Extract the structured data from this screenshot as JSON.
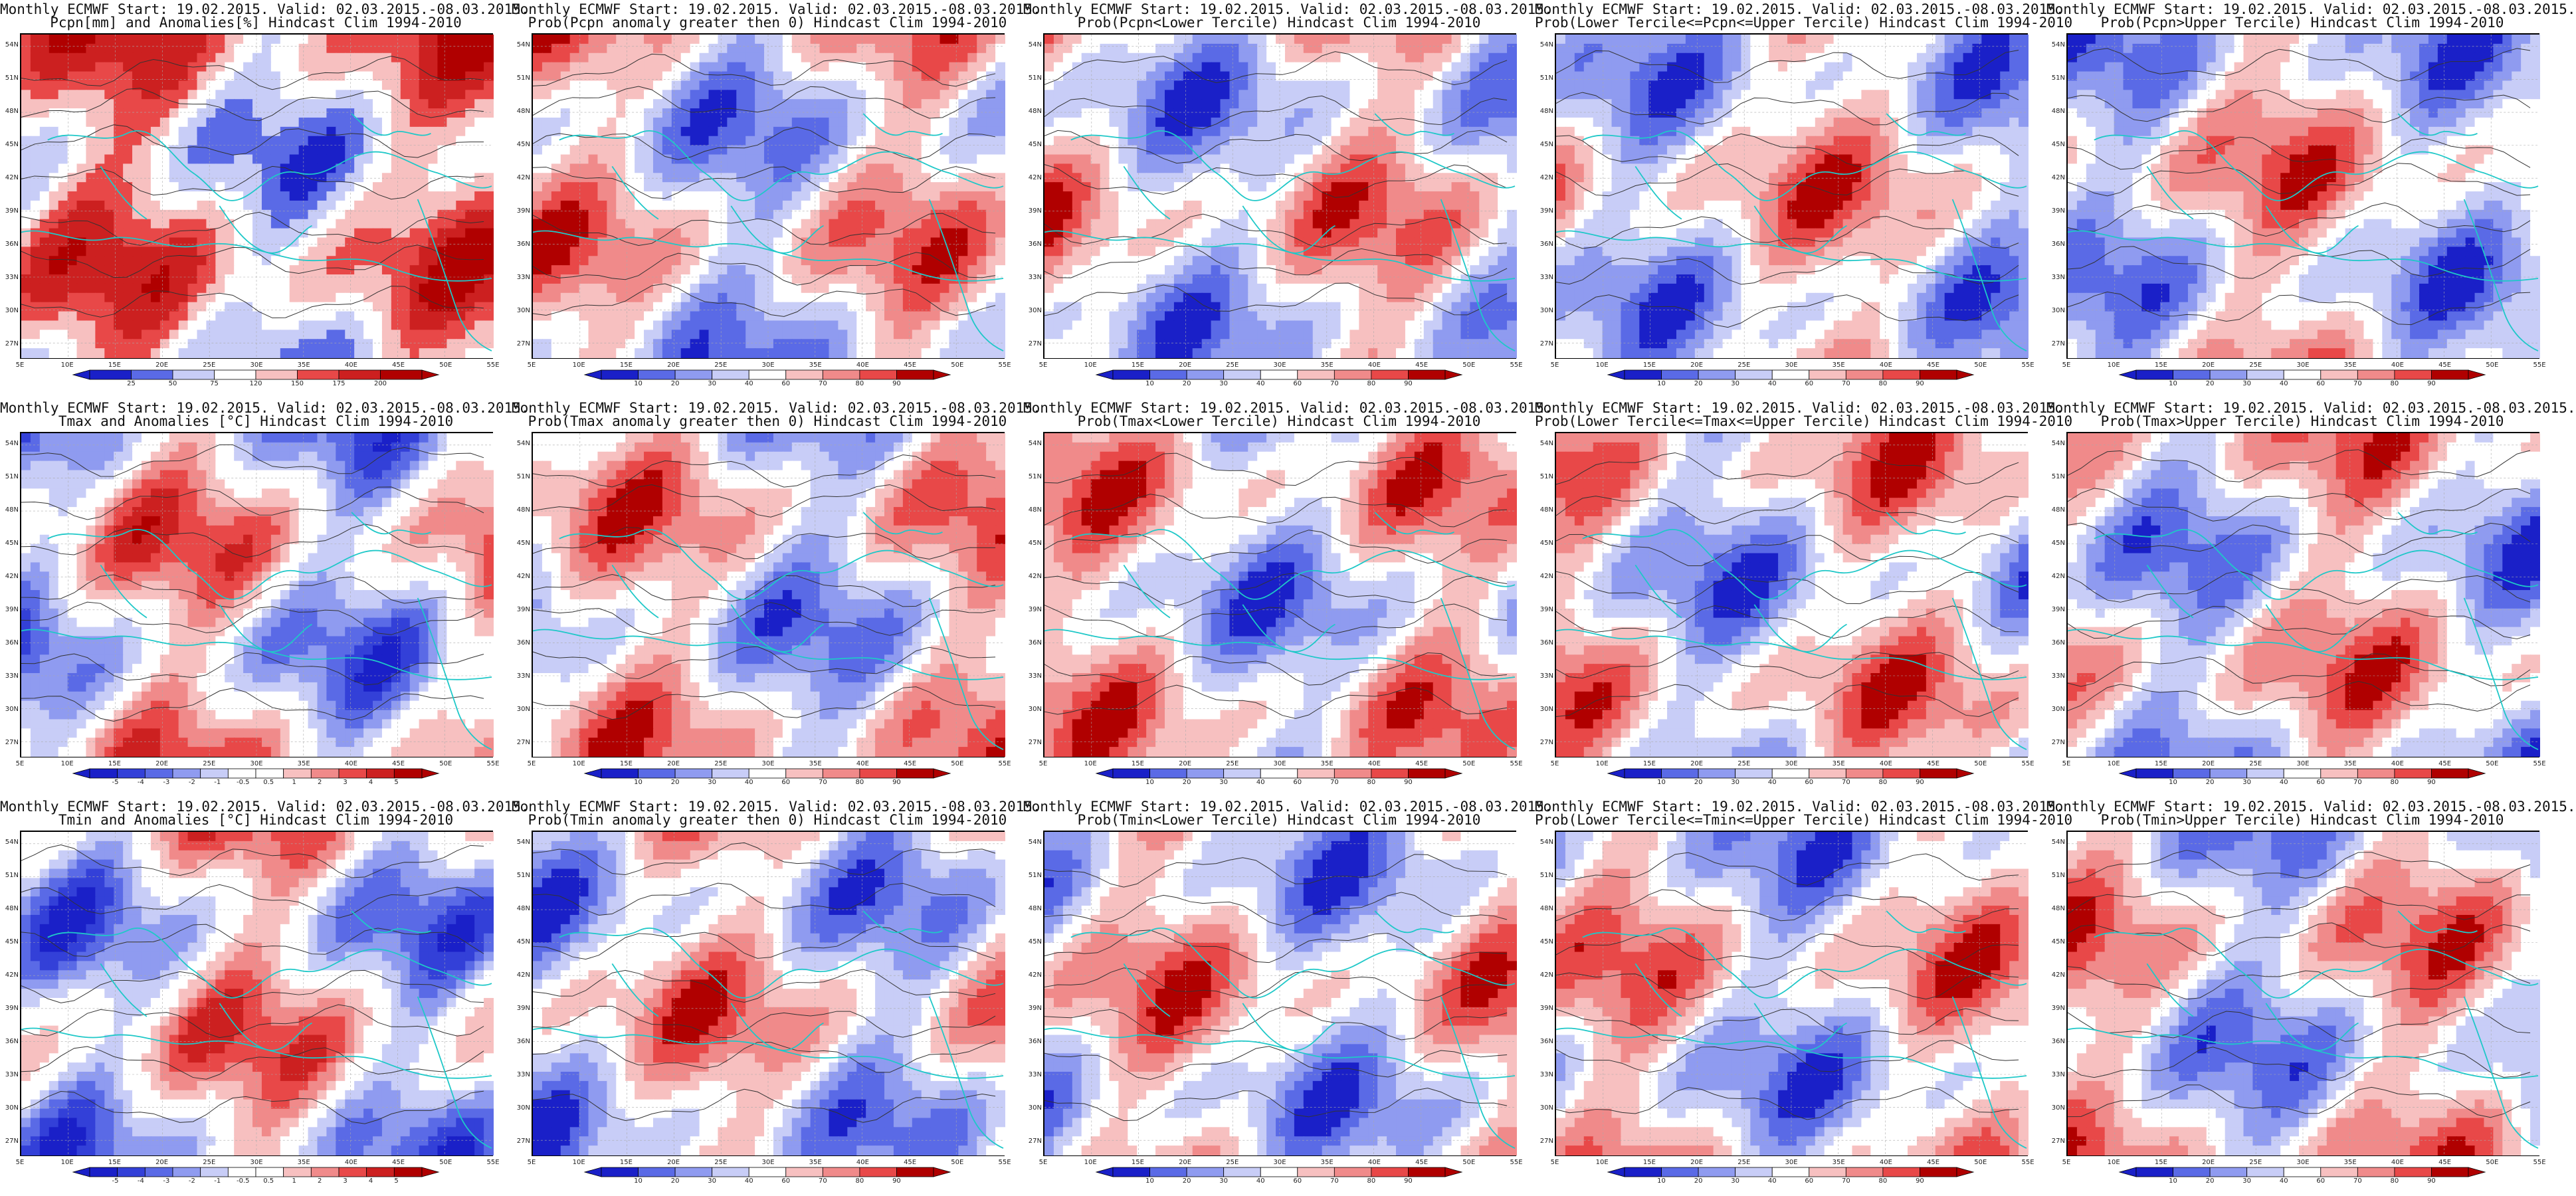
{
  "panels": [
    {
      "title1": "Monthly ECMWF Start: 19.02.2015. Valid: 02.03.2015.-08.03.2015.",
      "title2": "Pcpn[mm] and Anomalies[%] Hindcast Clim 1994-2010",
      "colorbar": [
        "25",
        "50",
        "75",
        "120",
        "150",
        "175",
        "200"
      ],
      "scale": "anom"
    },
    {
      "title1": "Monthly ECMWF Start: 19.02.2015. Valid: 02.03.2015.-08.03.2015.",
      "title2": "Prob(Pcpn anomaly greater then 0) Hindcast Clim 1994-2010",
      "colorbar": [
        "10",
        "20",
        "30",
        "40",
        "60",
        "70",
        "80",
        "90"
      ],
      "scale": "prob"
    },
    {
      "title1": "Monthly ECMWF Start: 19.02.2015. Valid: 02.03.2015.-08.03.2015.",
      "title2": "Prob(Pcpn<Lower Tercile) Hindcast Clim 1994-2010",
      "colorbar": [
        "10",
        "20",
        "30",
        "40",
        "60",
        "70",
        "80",
        "90"
      ],
      "scale": "prob"
    },
    {
      "title1": "Monthly ECMWF Start: 19.02.2015. Valid: 02.03.2015.-08.03.2015.",
      "title2": "Prob(Lower Tercile<=Pcpn<=Upper Tercile) Hindcast Clim 1994-2010",
      "colorbar": [
        "10",
        "20",
        "30",
        "40",
        "60",
        "70",
        "80",
        "90"
      ],
      "scale": "prob"
    },
    {
      "title1": "Monthly ECMWF Start: 19.02.2015. Valid: 02.03.2015.-08.03.2015.",
      "title2": "Prob(Pcpn>Upper Tercile) Hindcast Clim 1994-2010",
      "colorbar": [
        "10",
        "20",
        "30",
        "40",
        "60",
        "70",
        "80",
        "90"
      ],
      "scale": "prob"
    },
    {
      "title1": "Monthly ECMWF Start: 19.02.2015. Valid: 02.03.2015.-08.03.2015.",
      "title2": "Tmax and Anomalies [°C] Hindcast Clim 1994-2010",
      "colorbar": [
        "-5",
        "-4",
        "-3",
        "-2",
        "-1",
        "-0.5",
        "0.5",
        "1",
        "2",
        "3",
        "4",
        "5"
      ],
      "scale": "temp"
    },
    {
      "title1": "Monthly ECMWF Start: 19.02.2015. Valid: 02.03.2015.-08.03.2015.",
      "title2": "Prob(Tmax anomaly greater then 0) Hindcast Clim 1994-2010",
      "colorbar": [
        "10",
        "20",
        "30",
        "40",
        "60",
        "70",
        "80",
        "90"
      ],
      "scale": "prob"
    },
    {
      "title1": "Monthly ECMWF Start: 19.02.2015. Valid: 02.03.2015.-08.03.2015.",
      "title2": "Prob(Tmax<Lower Tercile) Hindcast Clim 1994-2010",
      "colorbar": [
        "10",
        "20",
        "30",
        "40",
        "60",
        "70",
        "80",
        "90"
      ],
      "scale": "prob"
    },
    {
      "title1": "Monthly ECMWF Start: 19.02.2015. Valid: 02.03.2015.-08.03.2015.",
      "title2": "Prob(Lower Tercile<=Tmax<=Upper Tercile) Hindcast Clim 1994-2010",
      "colorbar": [
        "10",
        "20",
        "30",
        "40",
        "60",
        "70",
        "80",
        "90"
      ],
      "scale": "prob"
    },
    {
      "title1": "Monthly ECMWF Start: 19.02.2015. Valid: 02.03.2015.-08.03.2015.",
      "title2": "Prob(Tmax>Upper Tercile) Hindcast Clim 1994-2010",
      "colorbar": [
        "10",
        "20",
        "30",
        "40",
        "60",
        "70",
        "80",
        "90"
      ],
      "scale": "prob"
    },
    {
      "title1": "Monthly ECMWF Start: 19.02.2015. Valid: 02.03.2015.-08.03.2015.",
      "title2": "Tmin and Anomalies [°C] Hindcast Clim 1994-2010",
      "colorbar": [
        "-5",
        "-4",
        "-3",
        "-2",
        "-1",
        "-0.5",
        "0.5",
        "1",
        "2",
        "3",
        "4",
        "5"
      ],
      "scale": "temp"
    },
    {
      "title1": "Monthly ECMWF Start: 19.02.2015. Valid: 02.03.2015.-08.03.2015.",
      "title2": "Prob(Tmin anomaly greater then 0) Hindcast Clim 1994-2010",
      "colorbar": [
        "10",
        "20",
        "30",
        "40",
        "60",
        "70",
        "80",
        "90"
      ],
      "scale": "prob"
    },
    {
      "title1": "Monthly ECMWF Start: 19.02.2015. Valid: 02.03.2015.-08.03.2015.",
      "title2": "Prob(Tmin<Lower Tercile) Hindcast Clim 1994-2010",
      "colorbar": [
        "10",
        "20",
        "30",
        "40",
        "60",
        "70",
        "80",
        "90"
      ],
      "scale": "prob"
    },
    {
      "title1": "Monthly ECMWF Start: 19.02.2015. Valid: 02.03.2015.-08.03.2015.",
      "title2": "Prob(Lower Tercile<=Tmin<=Upper Tercile) Hindcast Clim 1994-2010",
      "colorbar": [
        "10",
        "20",
        "30",
        "40",
        "60",
        "70",
        "80",
        "90"
      ],
      "scale": "prob"
    },
    {
      "title1": "Monthly ECMWF Start: 19.02.2015. Valid: 02.03.2015.-08.03.2015.",
      "title2": "Prob(Tmin>Upper Tercile) Hindcast Clim 1994-2010",
      "colorbar": [
        "10",
        "20",
        "30",
        "40",
        "60",
        "70",
        "80",
        "90"
      ],
      "scale": "prob"
    }
  ],
  "lat_labels": [
    "54N",
    "51N",
    "48N",
    "45N",
    "42N",
    "39N",
    "36N",
    "33N",
    "30N",
    "27N"
  ],
  "lon_labels": [
    "5E",
    "10E",
    "15E",
    "20E",
    "25E",
    "30E",
    "35E",
    "40E",
    "45E",
    "50E",
    "55E"
  ],
  "colors": {
    "coast": "#1fc8c8",
    "contour": "#333333",
    "grid": "#aaaaaa",
    "deep_blue": "#1a20c8",
    "mid_blue": "#5a6ae6",
    "light_blue": "#c8cdf7",
    "white": "#ffffff",
    "light_red": "#f7c0c0",
    "mid_red": "#e84848",
    "deep_red": "#b00000"
  }
}
